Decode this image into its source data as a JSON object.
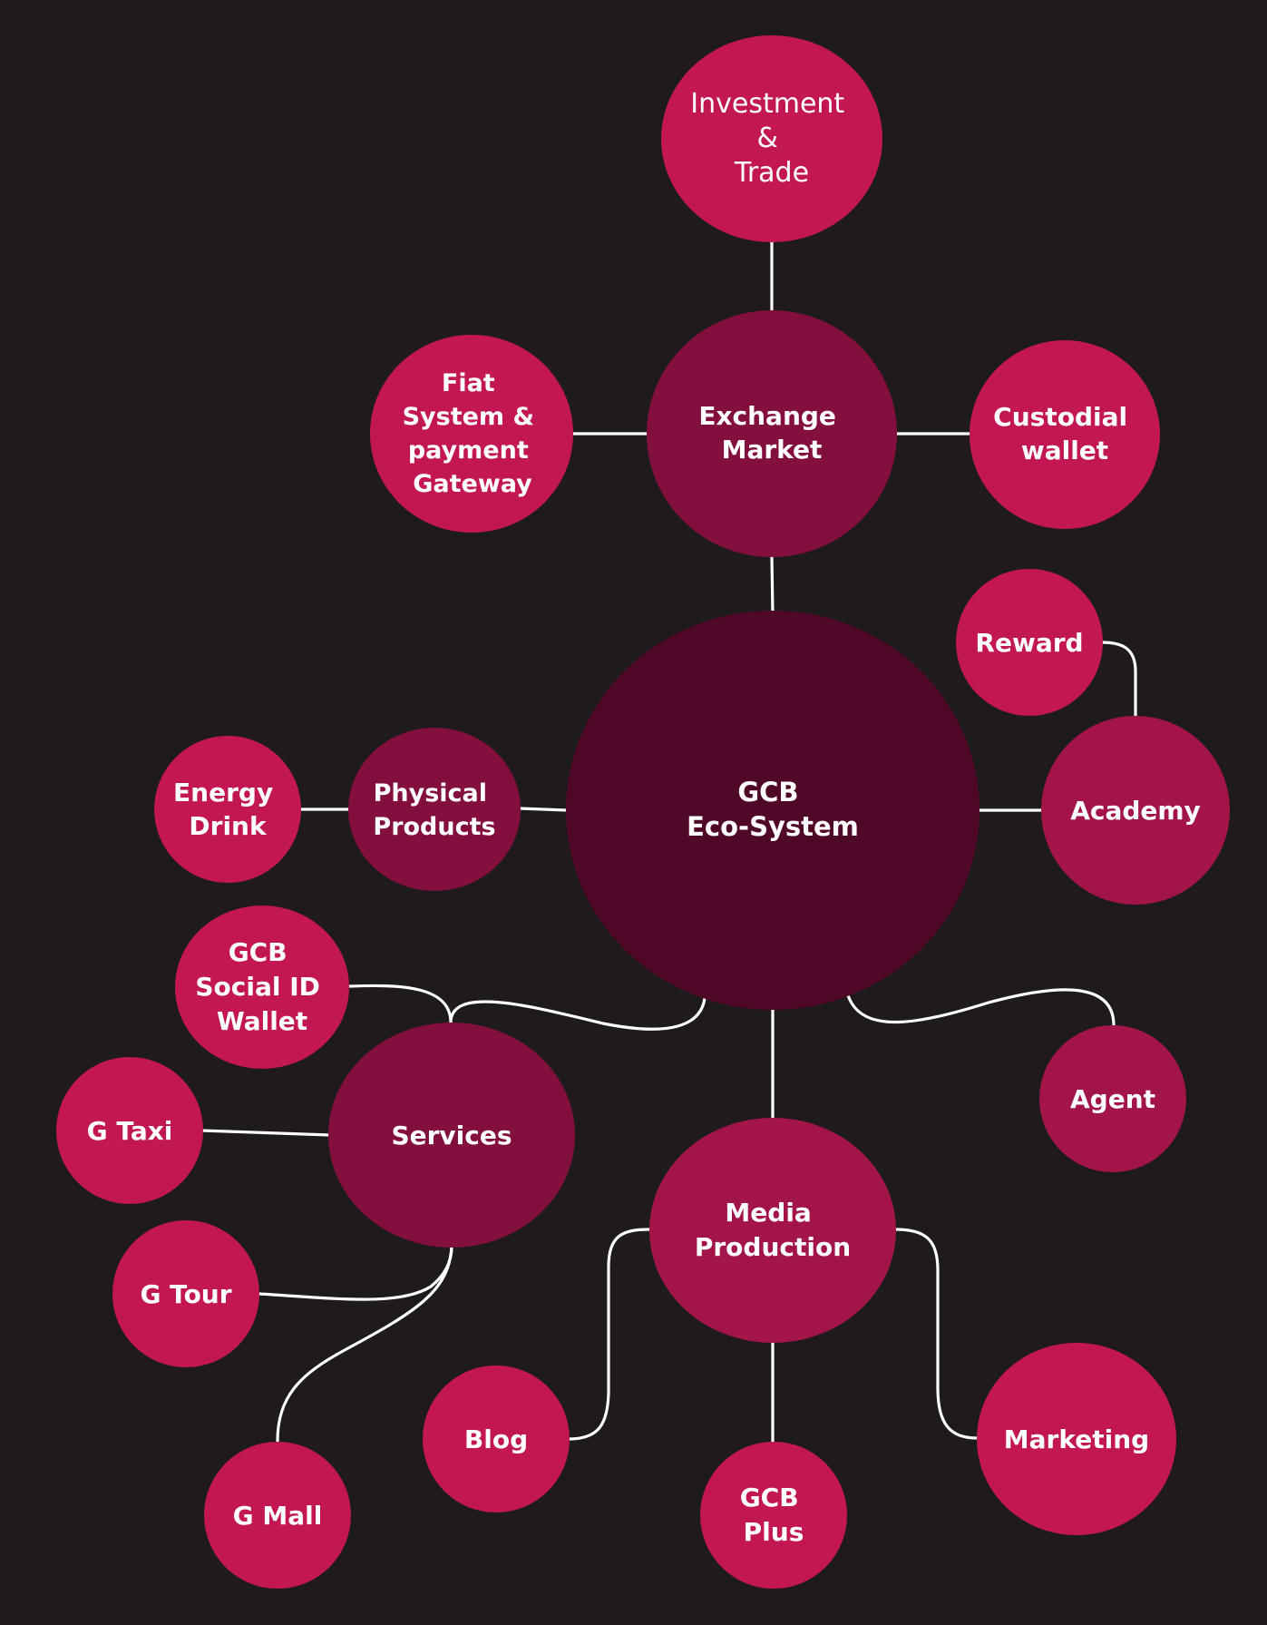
{
  "colors": {
    "background": "#1f1a1b",
    "center": "#4f0828",
    "hub": "#820f3e",
    "secondary": "#a3154a",
    "leaf": "#c21752",
    "connector": "#ffffff",
    "text": "#ffffff"
  },
  "nodes": {
    "investment_trade": {
      "lines": [
        "Investment",
        "&",
        "Trade"
      ]
    },
    "exchange_market": {
      "lines": [
        "Exchange",
        "Market"
      ]
    },
    "fiat_system": {
      "lines": [
        "Fiat",
        "System &",
        "payment",
        "Gateway"
      ]
    },
    "custodial_wallet": {
      "lines": [
        "Custodial",
        "wallet"
      ]
    },
    "reward": {
      "lines": [
        "Reward"
      ]
    },
    "academy": {
      "lines": [
        "Academy"
      ]
    },
    "gcb_ecosystem": {
      "lines": [
        "GCB",
        "Eco-System"
      ]
    },
    "physical_products": {
      "lines": [
        "Physical",
        "Products"
      ]
    },
    "energy_drink": {
      "lines": [
        "Energy",
        "Drink"
      ]
    },
    "social_id_wallet": {
      "lines": [
        "GCB",
        "Social ID",
        "Wallet"
      ]
    },
    "services": {
      "lines": [
        "Services"
      ]
    },
    "g_taxi": {
      "lines": [
        "G Taxi"
      ]
    },
    "g_tour": {
      "lines": [
        "G Tour"
      ]
    },
    "g_mall": {
      "lines": [
        "G Mall"
      ]
    },
    "agent": {
      "lines": [
        "Agent"
      ]
    },
    "media_production": {
      "lines": [
        "Media",
        "Production"
      ]
    },
    "blog": {
      "lines": [
        "Blog"
      ]
    },
    "gcb_plus": {
      "lines": [
        "GCB",
        "Plus"
      ]
    },
    "marketing": {
      "lines": [
        "Marketing"
      ]
    }
  }
}
